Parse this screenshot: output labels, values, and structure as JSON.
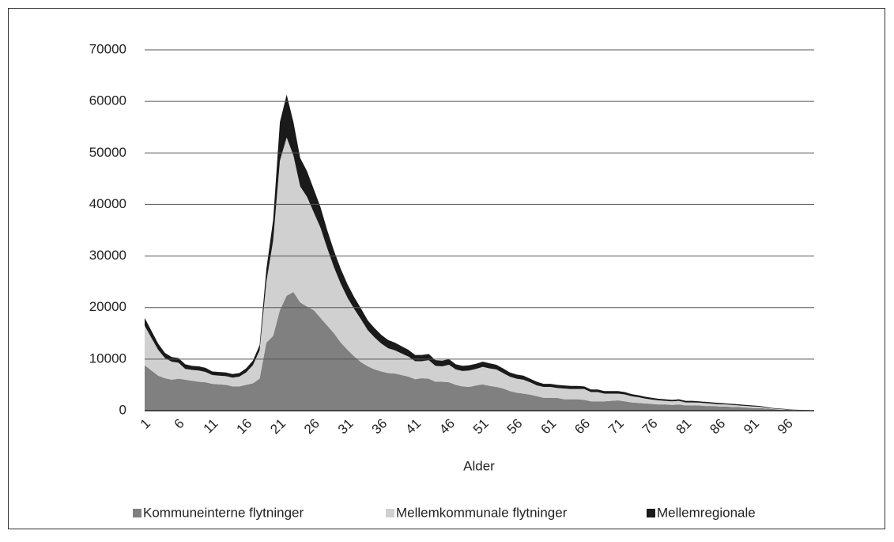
{
  "chart_data": {
    "type": "stacked-area",
    "xlabel": "Alder",
    "categories": [
      1,
      null,
      null,
      null,
      null,
      6,
      null,
      null,
      null,
      null,
      11,
      null,
      null,
      null,
      null,
      16,
      null,
      null,
      null,
      null,
      21,
      null,
      null,
      null,
      null,
      26,
      null,
      null,
      null,
      null,
      31,
      null,
      null,
      null,
      null,
      36,
      null,
      null,
      null,
      null,
      41,
      null,
      null,
      null,
      null,
      46,
      null,
      null,
      null,
      null,
      51,
      null,
      null,
      null,
      null,
      56,
      null,
      null,
      null,
      null,
      61,
      null,
      null,
      null,
      null,
      66,
      null,
      null,
      null,
      null,
      71,
      null,
      null,
      null,
      null,
      76,
      null,
      null,
      null,
      null,
      81,
      null,
      null,
      null,
      null,
      86,
      null,
      null,
      null,
      null,
      91,
      null,
      null,
      null,
      null,
      96,
      null,
      null,
      null,
      null
    ],
    "series": [
      {
        "name": "Kommuneinterne flytninger",
        "color": "#808080",
        "values": [
          8800,
          7800,
          6800,
          6300,
          6000,
          6200,
          6000,
          5800,
          5600,
          5500,
          5200,
          5100,
          5000,
          4700,
          4700,
          5000,
          5300,
          6200,
          13200,
          14500,
          19500,
          22300,
          23000,
          21000,
          20200,
          19500,
          18000,
          16500,
          15000,
          13200,
          11800,
          10500,
          9400,
          8600,
          8000,
          7600,
          7300,
          7200,
          6900,
          6600,
          6100,
          6300,
          6200,
          5600,
          5600,
          5500,
          5000,
          4700,
          4600,
          4900,
          5100,
          4800,
          4600,
          4300,
          3800,
          3500,
          3300,
          3100,
          2800,
          2500,
          2500,
          2500,
          2200,
          2200,
          2200,
          2100,
          1800,
          1800,
          1800,
          1900,
          2000,
          1800,
          1600,
          1500,
          1400,
          1300,
          1200,
          1200,
          1100,
          1200,
          1000,
          1000,
          1000,
          900,
          900,
          800,
          800,
          700,
          700,
          600,
          500,
          500,
          400,
          300,
          200,
          150,
          100,
          80,
          50,
          30
        ]
      },
      {
        "name": "Mellemkommunale flytninger",
        "color": "#d0d0d0",
        "values": [
          7700,
          6300,
          5000,
          3900,
          3500,
          3100,
          2100,
          2100,
          2200,
          2000,
          1700,
          1700,
          1700,
          1700,
          1900,
          2400,
          3500,
          5500,
          11800,
          18500,
          29000,
          30700,
          26500,
          22500,
          21300,
          19000,
          17500,
          15000,
          12800,
          11400,
          10100,
          9200,
          8300,
          7000,
          6200,
          5400,
          4800,
          4500,
          4200,
          3900,
          3500,
          3300,
          3600,
          3100,
          3000,
          3400,
          3000,
          3000,
          3200,
          3200,
          3400,
          3400,
          3400,
          3000,
          2800,
          2700,
          2700,
          2400,
          2100,
          2100,
          2100,
          1900,
          2100,
          2000,
          2000,
          2100,
          1800,
          1800,
          1500,
          1400,
          1300,
          1350,
          1200,
          1100,
          950,
          850,
          800,
          700,
          700,
          700,
          600,
          600,
          550,
          550,
          450,
          450,
          400,
          400,
          300,
          300,
          300,
          250,
          150,
          100,
          100,
          70,
          50,
          30,
          20,
          0
        ]
      },
      {
        "name": "Mellemregionale",
        "color": "#1a1a1a",
        "values": [
          1500,
          1400,
          1200,
          1000,
          900,
          900,
          900,
          800,
          800,
          800,
          700,
          700,
          700,
          700,
          700,
          800,
          900,
          1000,
          2500,
          4000,
          7500,
          8300,
          6500,
          5500,
          5000,
          4500,
          4000,
          3500,
          3200,
          2900,
          2600,
          2300,
          2100,
          1900,
          1800,
          1700,
          1600,
          1500,
          1400,
          1300,
          1200,
          1200,
          1200,
          1100,
          1100,
          1100,
          1000,
          1000,
          1000,
          1000,
          1000,
          1000,
          900,
          900,
          800,
          800,
          800,
          700,
          700,
          600,
          600,
          600,
          600,
          600,
          600,
          500,
          500,
          500,
          500,
          500,
          500,
          450,
          400,
          400,
          350,
          350,
          300,
          300,
          300,
          300,
          300,
          300,
          250,
          250,
          250,
          250,
          200,
          200,
          200,
          200,
          200,
          150,
          150,
          100,
          100,
          80,
          50,
          40,
          30,
          20
        ]
      }
    ],
    "ylim": [
      0,
      70000
    ],
    "yticks": [
      0,
      10000,
      20000,
      30000,
      40000,
      50000,
      60000,
      70000
    ],
    "grid": true,
    "legend": "bottom"
  }
}
